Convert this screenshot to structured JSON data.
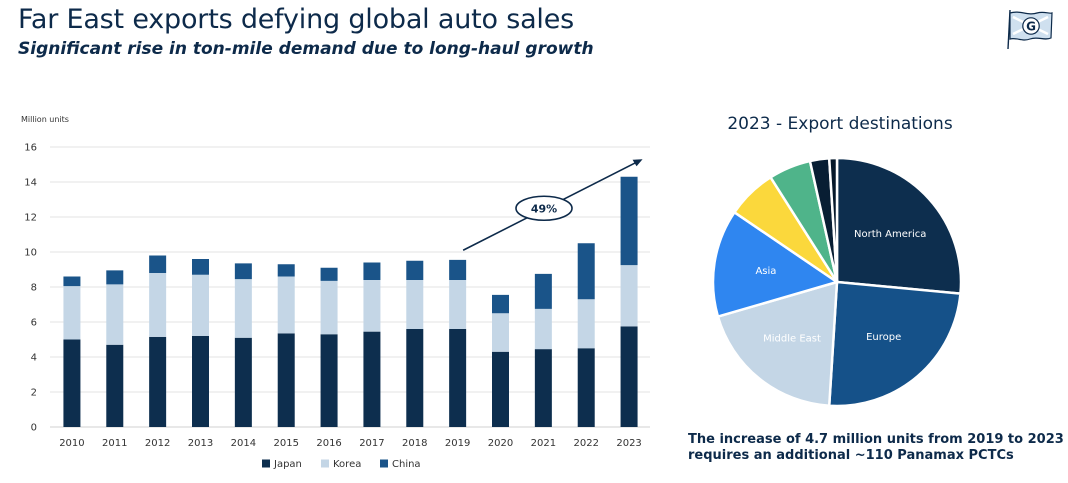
{
  "header": {
    "title": "Far East exports defying global auto sales",
    "subtitle": "Significant rise in ton-mile demand due to long-haul growth"
  },
  "colors": {
    "japan": "#0d2e4e",
    "korea": "#c4d6e6",
    "china": "#1a5489",
    "north_america": "#0d2e4e",
    "europe": "#155189",
    "middle_east": "#c4d6e6",
    "asia": "#2f86f0",
    "yellow": "#fbd83c",
    "green": "#4fb48a",
    "dark1": "#081e33",
    "dark2": "#06182a",
    "arrow": "#0d2a4a",
    "grid": "#e3e3e3"
  },
  "logo": {
    "icon": "flag-g-logo-icon",
    "letter": "G"
  },
  "callout": {
    "label": "49%"
  },
  "chart_data": [
    {
      "type": "bar",
      "stacked": true,
      "ylabel": "Million units",
      "ylim": [
        0,
        16
      ],
      "yticks": [
        0,
        2,
        4,
        6,
        8,
        10,
        12,
        14,
        16
      ],
      "grid": true,
      "legend_position": "bottom",
      "categories": [
        "2010",
        "2011",
        "2012",
        "2013",
        "2014",
        "2015",
        "2016",
        "2017",
        "2018",
        "2019",
        "2020",
        "2021",
        "2022",
        "2023"
      ],
      "series": [
        {
          "name": "Japan",
          "values": [
            5.0,
            4.7,
            5.15,
            5.2,
            5.1,
            5.35,
            5.3,
            5.45,
            5.6,
            5.6,
            4.3,
            4.45,
            4.5,
            5.75
          ]
        },
        {
          "name": "Korea",
          "values": [
            3.05,
            3.45,
            3.65,
            3.5,
            3.35,
            3.25,
            3.05,
            2.95,
            2.8,
            2.8,
            2.2,
            2.3,
            2.8,
            3.5
          ]
        },
        {
          "name": "China",
          "values": [
            0.55,
            0.8,
            1.0,
            0.9,
            0.9,
            0.7,
            0.75,
            1.0,
            1.1,
            1.15,
            1.05,
            2.0,
            3.2,
            5.05
          ]
        }
      ]
    },
    {
      "type": "pie",
      "title": "2023 - Export destinations",
      "slices": [
        {
          "label": "North America",
          "value": 26.5,
          "color": "#0d2e4e",
          "text_color": "#ffffff"
        },
        {
          "label": "Europe",
          "value": 24.5,
          "color": "#155189",
          "text_color": "#ffffff"
        },
        {
          "label": "Middle East",
          "value": 19.5,
          "color": "#c4d6e6",
          "text_color": "#ffffff"
        },
        {
          "label": "Asia",
          "value": 14.0,
          "color": "#2f86f0",
          "text_color": "#ffffff"
        },
        {
          "label": "",
          "value": 6.5,
          "color": "#fbd83c",
          "text_color": "#ffffff"
        },
        {
          "label": "",
          "value": 5.5,
          "color": "#4fb48a",
          "text_color": "#ffffff"
        },
        {
          "label": "",
          "value": 2.5,
          "color": "#081e33",
          "text_color": "#ffffff"
        },
        {
          "label": "",
          "value": 1.0,
          "color": "#06182a",
          "text_color": "#ffffff"
        }
      ]
    }
  ],
  "footnote": {
    "line1": "The increase of 4.7 million units from 2019 to 2023",
    "line2": "requires an additional ~110 Panamax PCTCs"
  }
}
